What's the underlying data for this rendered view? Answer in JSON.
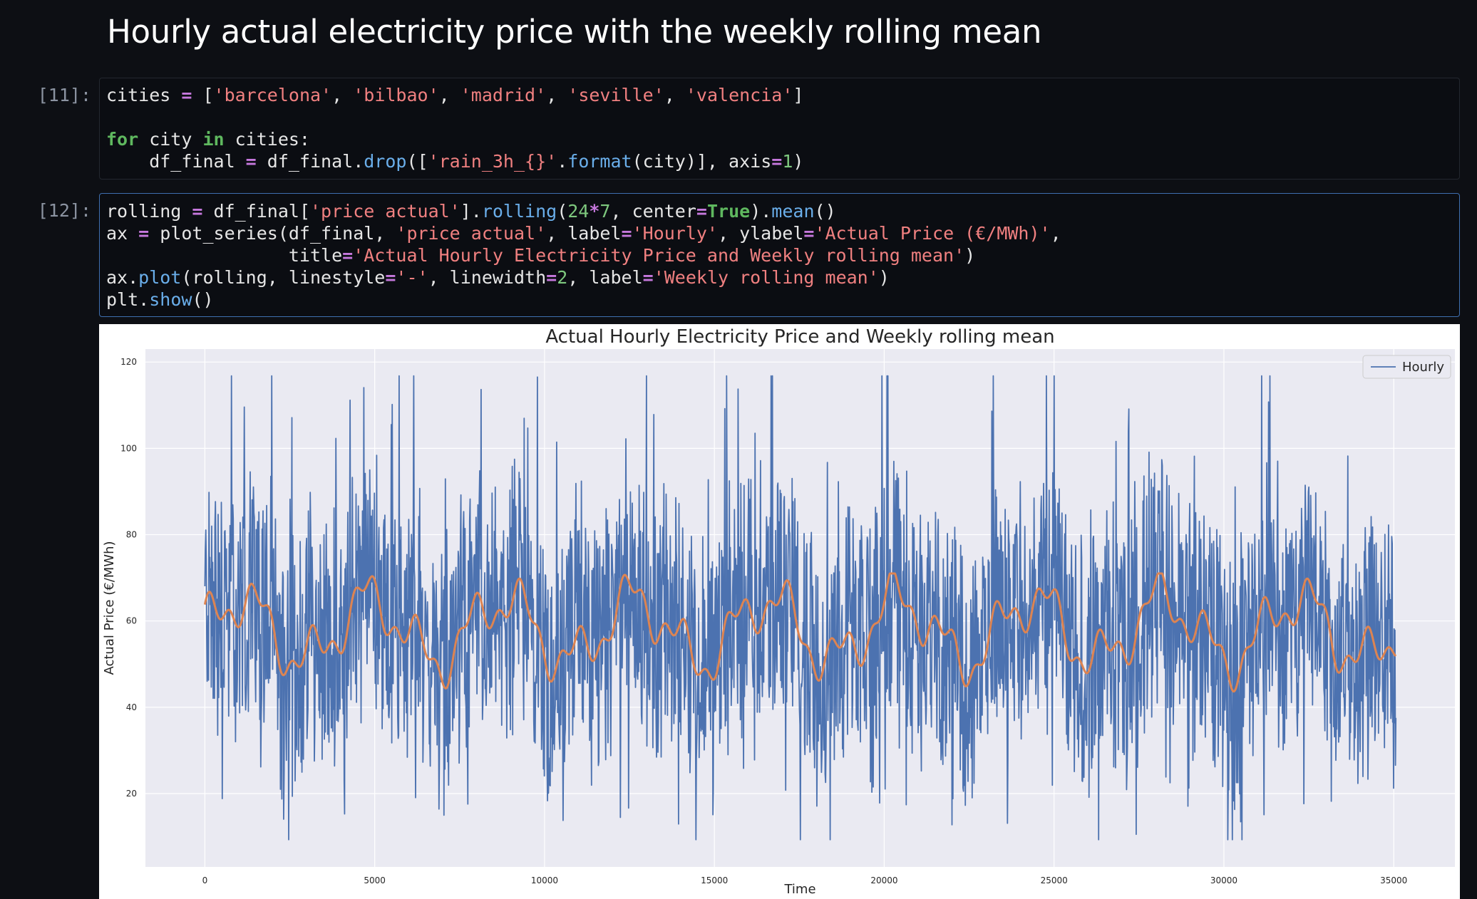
{
  "notebook": {
    "heading": "Hourly actual electricity price with the weekly rolling mean",
    "cells": [
      {
        "prompt": "[11]:",
        "lines": [
          [
            [
              "t",
              "cities "
            ],
            [
              "o",
              "="
            ],
            [
              "t",
              " ["
            ],
            [
              "s",
              "'barcelona'"
            ],
            [
              "t",
              ", "
            ],
            [
              "s",
              "'bilbao'"
            ],
            [
              "t",
              ", "
            ],
            [
              "s",
              "'madrid'"
            ],
            [
              "t",
              ", "
            ],
            [
              "s",
              "'seville'"
            ],
            [
              "t",
              ", "
            ],
            [
              "s",
              "'valencia'"
            ],
            [
              "t",
              "]"
            ]
          ],
          [],
          [
            [
              "k",
              "for"
            ],
            [
              "t",
              " city "
            ],
            [
              "k",
              "in"
            ],
            [
              "t",
              " cities:"
            ]
          ],
          [
            [
              "t",
              "    df_final "
            ],
            [
              "o",
              "="
            ],
            [
              "t",
              " df_final."
            ],
            [
              "f",
              "drop"
            ],
            [
              "t",
              "(["
            ],
            [
              "s",
              "'rain_3h_{}'"
            ],
            [
              "t",
              "."
            ],
            [
              "f",
              "format"
            ],
            [
              "t",
              "(city)], axis"
            ],
            [
              "o",
              "="
            ],
            [
              "n",
              "1"
            ],
            [
              "t",
              ")"
            ]
          ]
        ]
      },
      {
        "prompt": "[12]:",
        "lines": [
          [
            [
              "t",
              "rolling "
            ],
            [
              "o",
              "="
            ],
            [
              "t",
              " df_final["
            ],
            [
              "s",
              "'price actual'"
            ],
            [
              "t",
              "]."
            ],
            [
              "f",
              "rolling"
            ],
            [
              "t",
              "("
            ],
            [
              "n",
              "24"
            ],
            [
              "o",
              "*"
            ],
            [
              "n",
              "7"
            ],
            [
              "t",
              ", center"
            ],
            [
              "o",
              "="
            ],
            [
              "k",
              "True"
            ],
            [
              "t",
              ")."
            ],
            [
              "f",
              "mean"
            ],
            [
              "t",
              "()"
            ]
          ],
          [
            [
              "t",
              "ax "
            ],
            [
              "o",
              "="
            ],
            [
              "t",
              " plot_series(df_final, "
            ],
            [
              "s",
              "'price actual'"
            ],
            [
              "t",
              ", label"
            ],
            [
              "o",
              "="
            ],
            [
              "s",
              "'Hourly'"
            ],
            [
              "t",
              ", ylabel"
            ],
            [
              "o",
              "="
            ],
            [
              "s",
              "'Actual Price (€/MWh)'"
            ],
            [
              "t",
              ","
            ]
          ],
          [
            [
              "t",
              "                 title"
            ],
            [
              "o",
              "="
            ],
            [
              "s",
              "'Actual Hourly Electricity Price and Weekly rolling mean'"
            ],
            [
              "t",
              ")"
            ]
          ],
          [
            [
              "t",
              "ax."
            ],
            [
              "f",
              "plot"
            ],
            [
              "t",
              "(rolling, linestyle"
            ],
            [
              "o",
              "="
            ],
            [
              "s",
              "'-'"
            ],
            [
              "t",
              ", linewidth"
            ],
            [
              "o",
              "="
            ],
            [
              "n",
              "2"
            ],
            [
              "t",
              ", label"
            ],
            [
              "o",
              "="
            ],
            [
              "s",
              "'Weekly rolling mean'"
            ],
            [
              "t",
              ")"
            ]
          ],
          [
            [
              "t",
              "plt."
            ],
            [
              "f",
              "show"
            ],
            [
              "t",
              "()"
            ]
          ]
        ]
      }
    ]
  },
  "chart_data": {
    "type": "line",
    "title": "Actual Hourly Electricity Price and Weekly rolling mean",
    "xlabel": "Time",
    "ylabel": "Actual Price (€/MWh)",
    "xlim": [
      -1750,
      36800
    ],
    "ylim": [
      3,
      123
    ],
    "xticks": [
      0,
      5000,
      10000,
      15000,
      20000,
      25000,
      30000,
      35000
    ],
    "yticks": [
      20,
      40,
      60,
      80,
      100,
      120
    ],
    "grid": true,
    "legend": {
      "position": "top-right",
      "entries": [
        "Hourly"
      ]
    },
    "series": [
      {
        "name": "Hourly",
        "color": "#4c72b0",
        "x_range": [
          0,
          35063
        ],
        "center": 58,
        "min": 9.3,
        "max": 116.8
      },
      {
        "color": "#dd8452",
        "x_range": [
          0,
          35063
        ],
        "center": 58,
        "min": 36,
        "max": 71
      }
    ],
    "colors": {
      "axes_bg": "#eaeaf2",
      "grid": "#ffffff"
    }
  }
}
